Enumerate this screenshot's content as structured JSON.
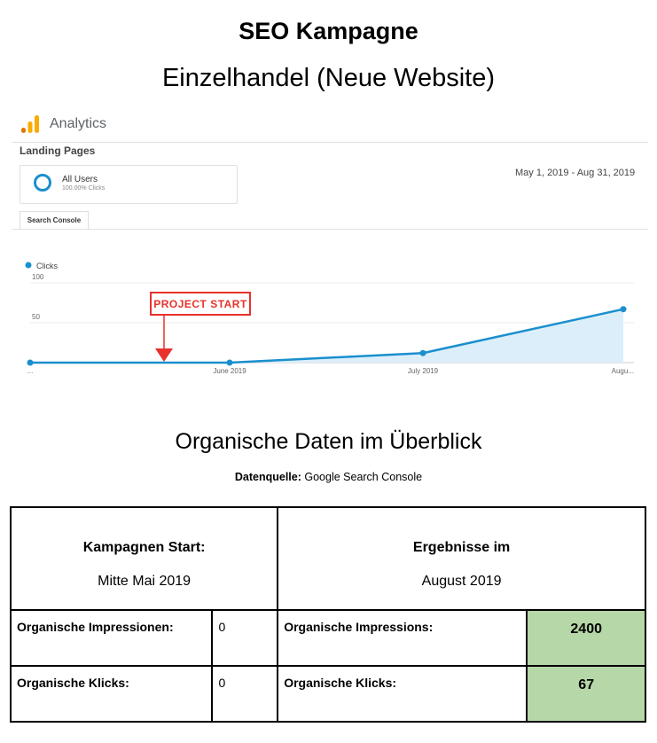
{
  "header": {
    "title": "SEO Kampagne",
    "subtitle": "Einzelhandel (Neue Website)"
  },
  "analytics": {
    "brand": "Analytics",
    "report_title": "Landing Pages",
    "segment_name": "All Users",
    "segment_sub": "100.00% Clicks",
    "date_range": "May 1, 2019 - Aug 31, 2019",
    "tab_label": "Search Console",
    "accent_color": "#1a8fce",
    "logo_colors": [
      "#f9ab00",
      "#e37400"
    ]
  },
  "chart_data": {
    "type": "area",
    "legend": "Clicks",
    "y_ticks": [
      "100",
      "50"
    ],
    "ylim": [
      0,
      100
    ],
    "x_labels": [
      "...",
      "June 2019",
      "July 2019",
      "Augu..."
    ],
    "values": [
      0,
      0,
      12,
      67
    ],
    "annotation": "PROJECT START",
    "annotation_color": "#e8312b",
    "series_color": "#1a8fce"
  },
  "overview": {
    "title": "Organische Daten im Überblick",
    "source_label": "Datenquelle:",
    "source_value": "Google Search Console"
  },
  "table": {
    "start_label": "Kampagnen Start:",
    "start_date": "Mitte Mai 2019",
    "result_label": "Ergebnisse im",
    "result_date": "August 2019",
    "rows": [
      {
        "start_label": "Organische Impressionen:",
        "start_value": "0",
        "result_label": "Organische Impressions:",
        "result_value": "2400"
      },
      {
        "start_label": "Organische Klicks:",
        "start_value": "0",
        "result_label": "Organische Klicks:",
        "result_value": "67"
      }
    ],
    "highlight_color": "#b6d7a8"
  }
}
